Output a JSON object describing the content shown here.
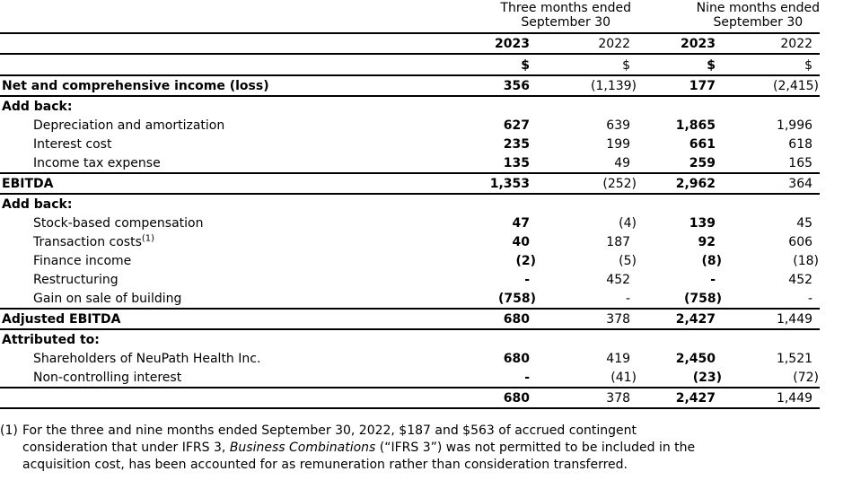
{
  "header": {
    "group1_line1": "Three months ended",
    "group1_line2": "September 30",
    "group2_line1": "Nine months ended",
    "group2_line2": "September 30",
    "years": [
      "2023",
      "2022",
      "2023",
      "2022"
    ],
    "currency": [
      "$",
      "$",
      "$",
      "$"
    ]
  },
  "rows": [
    {
      "label": "Net and comprehensive income (loss)",
      "values": [
        "356",
        "(1,139)",
        "177",
        "(2,415)"
      ]
    },
    {
      "label": "Add back:"
    },
    {
      "label": "Depreciation and amortization",
      "values": [
        "627",
        "639",
        "1,865",
        "1,996"
      ]
    },
    {
      "label": "Interest cost",
      "values": [
        "235",
        "199",
        "661",
        "618"
      ]
    },
    {
      "label": "Income tax expense",
      "values": [
        "135",
        "49",
        "259",
        "165"
      ]
    },
    {
      "label": "EBITDA",
      "values": [
        "1,353",
        "(252)",
        "2,962",
        "364"
      ]
    },
    {
      "label": "Add back:"
    },
    {
      "label": "Stock-based compensation",
      "values": [
        "47",
        "(4)",
        "139",
        "45"
      ]
    },
    {
      "label": "Transaction costs",
      "sup": "(1)",
      "values": [
        "40",
        "187",
        "92",
        "606"
      ]
    },
    {
      "label": "Finance income",
      "values": [
        "(2)",
        "(5)",
        "(8)",
        "(18)"
      ]
    },
    {
      "label": "Restructuring",
      "values": [
        "-",
        "452",
        "-",
        "452"
      ]
    },
    {
      "label": "Gain on sale of building",
      "values": [
        "(758)",
        "-",
        "(758)",
        "-"
      ]
    },
    {
      "label": "Adjusted EBITDA",
      "values": [
        "680",
        "378",
        "2,427",
        "1,449"
      ]
    },
    {
      "label": "Attributed to:"
    },
    {
      "label": "Shareholders of NeuPath Health Inc.",
      "values": [
        "680",
        "419",
        "2,450",
        "1,521"
      ]
    },
    {
      "label": "Non-controlling interest",
      "values": [
        "-",
        "(41)",
        "(23)",
        "(72)"
      ]
    },
    {
      "label": "",
      "values": [
        "680",
        "378",
        "2,427",
        "1,449"
      ]
    }
  ],
  "footnote": {
    "marker": "(1)",
    "line1": "For the three and nine months ended September 30, 2022, $187 and $563 of accrued contingent",
    "line2_before_italic": "consideration that under IFRS 3, ",
    "line2_italic": "Business Combinations",
    "line2_after_italic": " (“IFRS 3”) was not permitted to be included in the",
    "line3": "acquisition cost, has been accounted for as remuneration rather than consideration transferred."
  }
}
